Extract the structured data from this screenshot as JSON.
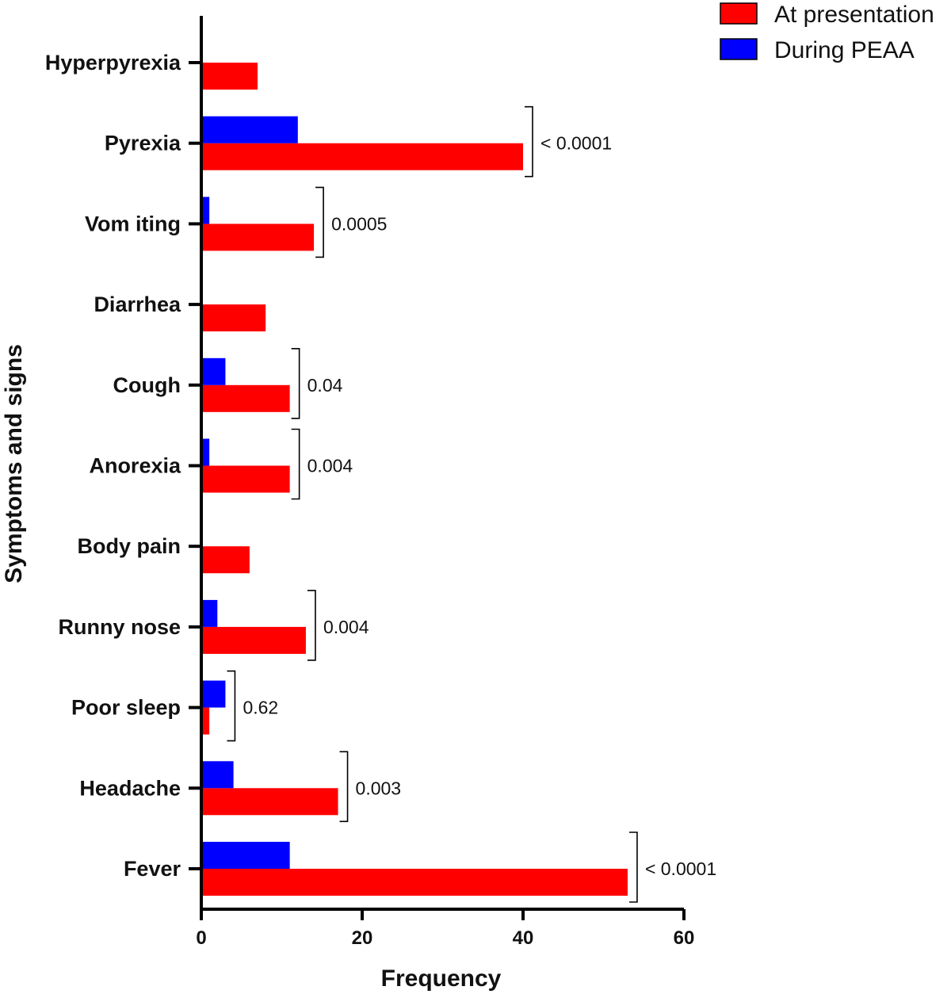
{
  "chart_data": {
    "type": "bar",
    "orientation": "horizontal",
    "categories": [
      "Hyperpyrexia",
      "Pyrexia",
      "Vom iting",
      "Diarrhea",
      "Cough",
      "Anorexia",
      "Body pain",
      "Runny nose",
      "Poor sleep",
      "Headache",
      "Fever"
    ],
    "series": [
      {
        "name": "At presentation",
        "color": "#ff0000",
        "values": [
          7,
          40,
          14,
          8,
          11,
          11,
          6,
          13,
          1,
          17,
          53
        ]
      },
      {
        "name": "During PEAA",
        "color": "#0000ff",
        "values": [
          0,
          12,
          1,
          0,
          3,
          1,
          0,
          2,
          3,
          4,
          11
        ]
      }
    ],
    "p_values": [
      "",
      "< 0.0001",
      "0.0005",
      "",
      "0.04",
      "0.004",
      "",
      "0.004",
      "0.62",
      "0.003",
      "< 0.0001"
    ],
    "xlabel": "Frequency",
    "ylabel": "Symptoms and signs",
    "xlim": [
      0,
      60
    ],
    "xticks": [
      0,
      20,
      40,
      60
    ],
    "legend_position": "top-right",
    "grid": false
  }
}
